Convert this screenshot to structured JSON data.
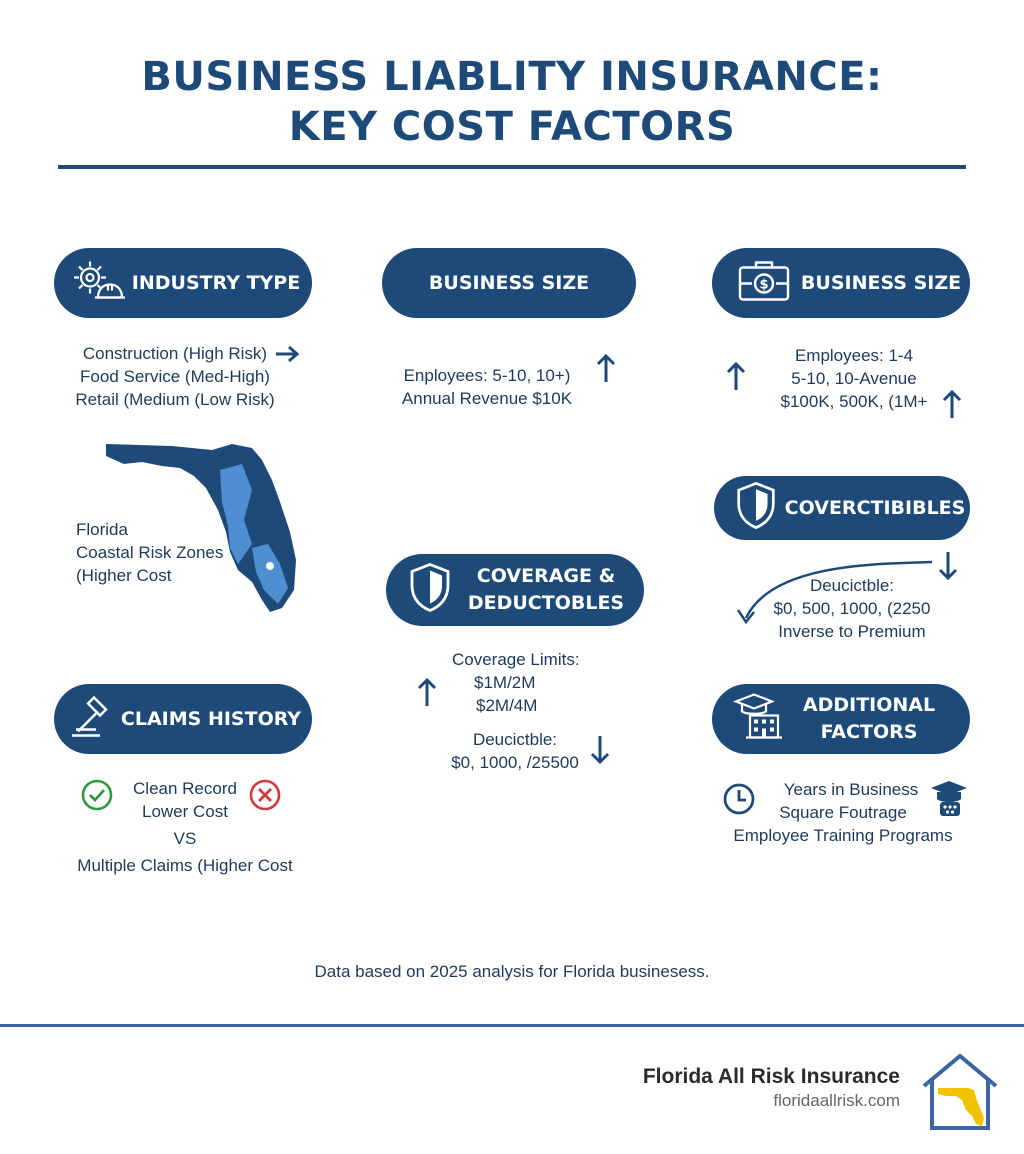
{
  "title": {
    "line1": "BUSINESS LIABLITY INSURANCE:",
    "line2": "KEY COST FACTORS"
  },
  "industry": {
    "label": "INDUSTRY TYPE",
    "lines": [
      "Construction (High Risk)",
      "Food Service (Med-High)",
      "Retail (Medium (Low Risk)"
    ]
  },
  "florida": {
    "lines": [
      "Florida",
      "Coastal Risk Zones",
      "(Higher Cost"
    ]
  },
  "claims": {
    "label": "CLAIMS HISTORY",
    "line1": "Clean Record",
    "line2": "Lower Cost",
    "vs": "VS",
    "line3": "Multiple Claims (Higher Cost"
  },
  "size_center": {
    "label": "BUSINESS SIZE",
    "lines": [
      "Enployees: 5-10, 10+)",
      "Annual Revenue $10K"
    ]
  },
  "coverage": {
    "label_line1": "COVERAGE &",
    "label_line2": "DEDUCTOBLES",
    "limits_lines": [
      "Coverage Limits:",
      "$1M/2M",
      "$2M/4M"
    ],
    "deduct_lines": [
      "Deucictble:",
      "$0, 1000, /25500"
    ]
  },
  "size_right": {
    "label": "BUSINESS SIZE",
    "lines": [
      "Employees: 1-4",
      "5-10, 10-Avenue",
      "$100K, 500K, (1M+"
    ]
  },
  "convert": {
    "label": "COVERCTIBIBLES",
    "lines": [
      "Deucictble:",
      "$0, 500, 1000, (2250",
      "Inverse to Premium"
    ]
  },
  "additional": {
    "label_line1": "ADDITIONAL",
    "label_line2": "FACTORS",
    "lines": [
      "Years in Business",
      "Square Foutrage",
      "Employee Training Programs"
    ]
  },
  "footnote": "Data based on 2025 analysis for Florida businesess.",
  "brand": {
    "name": "Florida All Risk Insurance",
    "url": "floridaallrisk.com"
  },
  "colors": {
    "navy": "#1e4a7a",
    "lightblue": "#4f8fd1",
    "green": "#2e9a3e",
    "red": "#d23a3a",
    "gold": "#f2c200"
  }
}
